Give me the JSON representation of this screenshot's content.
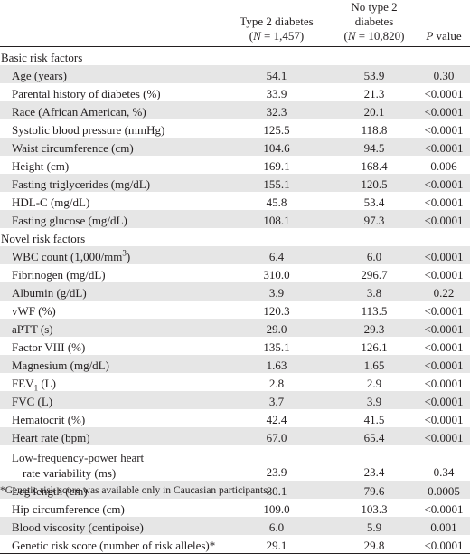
{
  "header": {
    "col1_line1": "Type 2 diabetes",
    "col1_line2": "(N = 1,457)",
    "col2_line1": "No type 2 diabetes",
    "col2_line2": "(N = 10,820)",
    "col3": "P value"
  },
  "sections": [
    {
      "title": "Basic risk factors",
      "rows": [
        {
          "label": "Age (years)",
          "t2d": "54.1",
          "no_t2d": "53.9",
          "p": "0.30"
        },
        {
          "label": "Parental history of diabetes (%)",
          "t2d": "33.9",
          "no_t2d": "21.3",
          "p": "<0.0001"
        },
        {
          "label": "Race (African American, %)",
          "t2d": "32.3",
          "no_t2d": "20.1",
          "p": "<0.0001"
        },
        {
          "label": "Systolic blood pressure (mmHg)",
          "t2d": "125.5",
          "no_t2d": "118.8",
          "p": "<0.0001"
        },
        {
          "label": "Waist circumference (cm)",
          "t2d": "104.6",
          "no_t2d": "94.5",
          "p": "<0.0001"
        },
        {
          "label": "Height (cm)",
          "t2d": "169.1",
          "no_t2d": "168.4",
          "p": "0.006"
        },
        {
          "label": "Fasting triglycerides (mg/dL)",
          "t2d": "155.1",
          "no_t2d": "120.5",
          "p": "<0.0001"
        },
        {
          "label": "HDL-C (mg/dL)",
          "t2d": "45.8",
          "no_t2d": "53.4",
          "p": "<0.0001"
        },
        {
          "label": "Fasting glucose (mg/dL)",
          "t2d": "108.1",
          "no_t2d": "97.3",
          "p": "<0.0001"
        }
      ]
    },
    {
      "title": "Novel risk factors",
      "rows": [
        {
          "label": "WBC count (1,000/mm",
          "sup": "3",
          "label_tail": ")",
          "t2d": "6.4",
          "no_t2d": "6.0",
          "p": "<0.0001"
        },
        {
          "label": "Fibrinogen (mg/dL)",
          "t2d": "310.0",
          "no_t2d": "296.7",
          "p": "<0.0001"
        },
        {
          "label": "Albumin (g/dL)",
          "t2d": "3.9",
          "no_t2d": "3.8",
          "p": "0.22"
        },
        {
          "label": "vWF (%)",
          "t2d": "120.3",
          "no_t2d": "113.5",
          "p": "<0.0001"
        },
        {
          "label": "aPTT (s)",
          "t2d": "29.0",
          "no_t2d": "29.3",
          "p": "<0.0001"
        },
        {
          "label": "Factor VIII (%)",
          "t2d": "135.1",
          "no_t2d": "126.1",
          "p": "<0.0001"
        },
        {
          "label": "Magnesium (mg/dL)",
          "t2d": "1.63",
          "no_t2d": "1.65",
          "p": "<0.0001"
        },
        {
          "label": "FEV",
          "sub": "1",
          "label_tail": " (L)",
          "t2d": "2.8",
          "no_t2d": "2.9",
          "p": "<0.0001"
        },
        {
          "label": "FVC (L)",
          "t2d": "3.7",
          "no_t2d": "3.9",
          "p": "<0.0001"
        },
        {
          "label": "Hematocrit (%)",
          "t2d": "42.4",
          "no_t2d": "41.5",
          "p": "<0.0001"
        },
        {
          "label": "Heart rate (bpm)",
          "t2d": "67.0",
          "no_t2d": "65.4",
          "p": "<0.0001"
        },
        {
          "label": "Low-frequency-power heart",
          "label_line2": "rate variability (ms)",
          "t2d": "23.9",
          "no_t2d": "23.4",
          "p": "0.34"
        },
        {
          "label": "Leg length (cm)",
          "t2d": "80.1",
          "no_t2d": "79.6",
          "p": "0.0005"
        },
        {
          "label": "Hip circumference (cm)",
          "t2d": "109.0",
          "no_t2d": "103.3",
          "p": "<0.0001"
        },
        {
          "label": "Blood viscosity (centipoise)",
          "t2d": "6.0",
          "no_t2d": "5.9",
          "p": "0.001"
        },
        {
          "label": "Genetic risk score (number of risk alleles)*",
          "t2d": "29.1",
          "no_t2d": "29.8",
          "p": "<0.0001"
        }
      ]
    }
  ],
  "footnote": "*Genetic risk score was available only in Caucasian participants."
}
